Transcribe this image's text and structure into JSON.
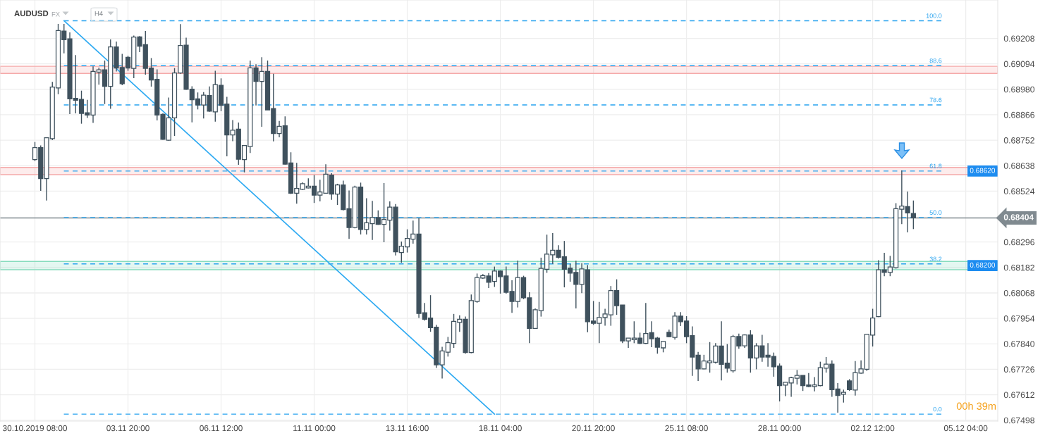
{
  "chart_data": {
    "type": "candlestick",
    "title": "AUDUSD",
    "annotations": [
      "FX",
      "H4",
      "00h 39m",
      {
        "text": "100.0",
        "y": 0.69287
      },
      {
        "text": "88.6",
        "y": 0.69086
      },
      {
        "text": "78.6",
        "y": 0.6891
      },
      {
        "text": "61.8",
        "y": 0.68614
      },
      {
        "text": "50.0",
        "y": 0.68406
      },
      {
        "text": "38.2",
        "y": 0.68198
      },
      {
        "text": "0.0",
        "y": 0.67525
      }
    ],
    "categories": [
      "30.10.2019 08:00",
      null,
      null,
      null,
      null,
      null,
      null,
      null,
      null,
      null,
      null,
      null,
      null,
      null,
      null,
      null,
      "03.11 20:00",
      null,
      null,
      null,
      null,
      null,
      null,
      null,
      null,
      null,
      null,
      null,
      null,
      null,
      null,
      null,
      "06.11 12:00",
      null,
      null,
      null,
      null,
      null,
      null,
      null,
      null,
      null,
      null,
      null,
      null,
      null,
      null,
      null,
      "11.11 00:00",
      null,
      null,
      null,
      null,
      null,
      null,
      null,
      null,
      null,
      null,
      null,
      null,
      null,
      null,
      null,
      "13.11 16:00",
      null,
      null,
      null,
      null,
      null,
      null,
      null,
      null,
      null,
      null,
      null,
      null,
      null,
      null,
      null,
      "18.11 04:00",
      null,
      null,
      null,
      null,
      null,
      null,
      null,
      null,
      null,
      null,
      null,
      null,
      null,
      null,
      null,
      "20.11 20:00",
      null,
      null,
      null,
      null,
      null,
      null,
      null,
      null,
      null,
      null,
      null,
      null,
      null,
      null,
      null,
      "25.11 08:00",
      null,
      null,
      null,
      null,
      null,
      null,
      null,
      null,
      null,
      null,
      null,
      null,
      null,
      null,
      null,
      "28.11 00:00",
      null,
      null,
      null,
      null,
      null,
      null,
      null,
      null,
      null,
      null,
      null,
      null,
      null,
      null,
      null,
      "02.12 12:00",
      null,
      null,
      null,
      null,
      null,
      null,
      null,
      null,
      null,
      null,
      null,
      null,
      null,
      null,
      null,
      "05.12 04:00",
      null,
      null,
      null,
      null,
      null
    ],
    "series": [
      {
        "color": "#3f515d",
        "ohlc": [
          [
            0.68665,
            0.68744,
            0.68659,
            0.68719
          ],
          [
            0.68719,
            0.68729,
            0.68525,
            0.6858
          ],
          [
            0.6858,
            0.68763,
            0.68482,
            0.68763
          ],
          [
            0.68759,
            0.69013,
            0.68752,
            0.6899
          ],
          [
            0.68986,
            0.69273,
            0.68958,
            0.69243
          ],
          [
            0.69241,
            0.69273,
            0.69141,
            0.69202
          ],
          [
            0.69206,
            0.69235,
            0.68869,
            0.68937
          ],
          [
            0.6894,
            0.69133,
            0.68872,
            0.68931
          ],
          [
            0.68935,
            0.68974,
            0.68826,
            0.68872
          ],
          [
            0.68875,
            0.68933,
            0.68852,
            0.68865
          ],
          [
            0.68865,
            0.69083,
            0.6883,
            0.6906
          ],
          [
            0.69057,
            0.69077,
            0.69001,
            0.69067
          ],
          [
            0.69067,
            0.69109,
            0.68914,
            0.68993
          ],
          [
            0.68993,
            0.69203,
            0.68893,
            0.6917
          ],
          [
            0.6917,
            0.69194,
            0.6906,
            0.69075
          ],
          [
            0.69078,
            0.69139,
            0.68998,
            0.69005
          ],
          [
            0.69123,
            0.6913,
            0.69063,
            0.69075
          ],
          [
            0.69074,
            0.69221,
            0.6903,
            0.69214
          ],
          [
            0.69215,
            0.69218,
            0.69147,
            0.69173
          ],
          [
            0.6918,
            0.69241,
            0.69046,
            0.69074
          ],
          [
            0.69075,
            0.6912,
            0.68992,
            0.69022
          ],
          [
            0.69025,
            0.69069,
            0.68841,
            0.68865
          ],
          [
            0.68868,
            0.68872,
            0.68754,
            0.68756
          ],
          [
            0.68752,
            0.68943,
            0.6875,
            0.68852
          ],
          [
            0.68852,
            0.69075,
            0.68771,
            0.69053
          ],
          [
            0.69053,
            0.69272,
            0.6905,
            0.69176
          ],
          [
            0.69178,
            0.69211,
            0.68978,
            0.6898
          ],
          [
            0.68981,
            0.68994,
            0.68832,
            0.68933
          ],
          [
            0.68937,
            0.68966,
            0.6889,
            0.6891
          ],
          [
            0.6891,
            0.68968,
            0.68849,
            0.68954
          ],
          [
            0.68952,
            0.68993,
            0.68879,
            0.68882
          ],
          [
            0.68879,
            0.69063,
            0.68835,
            0.69001
          ],
          [
            0.68998,
            0.69029,
            0.68882,
            0.68908
          ],
          [
            0.68914,
            0.68946,
            0.6868,
            0.68776
          ],
          [
            0.68776,
            0.68842,
            0.68748,
            0.68797
          ],
          [
            0.68802,
            0.68831,
            0.68642,
            0.68667
          ],
          [
            0.68665,
            0.68728,
            0.68608,
            0.68728
          ],
          [
            0.68724,
            0.69109,
            0.68695,
            0.69076
          ],
          [
            0.69076,
            0.69092,
            0.68908,
            0.69015
          ],
          [
            0.69015,
            0.69124,
            0.68812,
            0.6906
          ],
          [
            0.6906,
            0.69109,
            0.68888,
            0.68888
          ],
          [
            0.68894,
            0.6905,
            0.68747,
            0.68782
          ],
          [
            0.68782,
            0.68838,
            0.68765,
            0.68814
          ],
          [
            0.68817,
            0.68859,
            0.68643,
            0.68645
          ],
          [
            0.6865,
            0.68698,
            0.68511,
            0.68515
          ],
          [
            0.68515,
            0.68651,
            0.68468,
            0.68536
          ],
          [
            0.68532,
            0.68563,
            0.68529,
            0.68557
          ],
          [
            0.68538,
            0.68581,
            0.68536,
            0.68546
          ],
          [
            0.68546,
            0.68596,
            0.68471,
            0.68506
          ],
          [
            0.68506,
            0.68575,
            0.68478,
            0.6852
          ],
          [
            0.68515,
            0.68644,
            0.68513,
            0.686
          ],
          [
            0.68596,
            0.68604,
            0.68485,
            0.68511
          ],
          [
            0.68511,
            0.68557,
            0.68462,
            0.68552
          ],
          [
            0.68552,
            0.68571,
            0.68438,
            0.68441
          ],
          [
            0.68445,
            0.68527,
            0.6831,
            0.68361
          ],
          [
            0.68361,
            0.68548,
            0.68357,
            0.68542
          ],
          [
            0.68542,
            0.68562,
            0.6833,
            0.68352
          ],
          [
            0.68352,
            0.68492,
            0.6833,
            0.68382
          ],
          [
            0.68378,
            0.6848,
            0.68305,
            0.68406
          ],
          [
            0.68406,
            0.68438,
            0.68373,
            0.68375
          ],
          [
            0.68375,
            0.6856,
            0.68295,
            0.68397
          ],
          [
            0.68394,
            0.68478,
            0.68347,
            0.68452
          ],
          [
            0.68452,
            0.68466,
            0.68236,
            0.68252
          ],
          [
            0.68249,
            0.68298,
            0.68204,
            0.68277
          ],
          [
            0.68274,
            0.68353,
            0.68249,
            0.68312
          ],
          [
            0.68309,
            0.68392,
            0.68289,
            0.68332
          ],
          [
            0.68332,
            0.68402,
            0.67956,
            0.67976
          ],
          [
            0.67979,
            0.68023,
            0.67944,
            0.6795
          ],
          [
            0.67956,
            0.68058,
            0.67894,
            0.67912
          ],
          [
            0.67915,
            0.67925,
            0.67732,
            0.67746
          ],
          [
            0.67746,
            0.67827,
            0.67685,
            0.67808
          ],
          [
            0.67803,
            0.67871,
            0.67783,
            0.67845
          ],
          [
            0.67842,
            0.67974,
            0.67822,
            0.67941
          ],
          [
            0.67936,
            0.67968,
            0.67894,
            0.6795
          ],
          [
            0.6795,
            0.67962,
            0.67796,
            0.67801
          ],
          [
            0.67801,
            0.68061,
            0.67798,
            0.68034
          ],
          [
            0.6803,
            0.68155,
            0.68024,
            0.68137
          ],
          [
            0.68135,
            0.68152,
            0.68131,
            0.68146
          ],
          [
            0.68144,
            0.68157,
            0.6809,
            0.68116
          ],
          [
            0.6812,
            0.68186,
            0.68095,
            0.68166
          ],
          [
            0.68166,
            0.68169,
            0.68065,
            0.68141
          ],
          [
            0.68144,
            0.68186,
            0.68065,
            0.68071
          ],
          [
            0.68075,
            0.68125,
            0.67979,
            0.6803
          ],
          [
            0.6803,
            0.68213,
            0.68003,
            0.68137
          ],
          [
            0.68137,
            0.68145,
            0.6804,
            0.68046
          ],
          [
            0.68046,
            0.68071,
            0.67843,
            0.67909
          ],
          [
            0.67909,
            0.67999,
            0.67907,
            0.67993
          ],
          [
            0.67989,
            0.68226,
            0.67962,
            0.68178
          ],
          [
            0.68174,
            0.68329,
            0.68158,
            0.68242
          ],
          [
            0.68239,
            0.68336,
            0.68198,
            0.68259
          ],
          [
            0.68259,
            0.68282,
            0.68222,
            0.68228
          ],
          [
            0.6823,
            0.68301,
            0.68093,
            0.68174
          ],
          [
            0.68179,
            0.68198,
            0.68118,
            0.68157
          ],
          [
            0.6816,
            0.68212,
            0.67999,
            0.68106
          ],
          [
            0.68106,
            0.68201,
            0.68067,
            0.68176
          ],
          [
            0.68172,
            0.68193,
            0.67892,
            0.67939
          ],
          [
            0.67942,
            0.68032,
            0.67925,
            0.67932
          ],
          [
            0.67932,
            0.68028,
            0.67843,
            0.67958
          ],
          [
            0.67958,
            0.67997,
            0.67921,
            0.67974
          ],
          [
            0.6797,
            0.68099,
            0.67921,
            0.68079
          ],
          [
            0.68079,
            0.68129,
            0.6797,
            0.68011
          ],
          [
            0.68014,
            0.68014,
            0.67843,
            0.67853
          ],
          [
            0.67853,
            0.67866,
            0.67822,
            0.67866
          ],
          [
            0.67859,
            0.67941,
            0.67843,
            0.67866
          ],
          [
            0.67866,
            0.6789,
            0.67839,
            0.67842
          ],
          [
            0.67842,
            0.68023,
            0.67839,
            0.67886
          ],
          [
            0.6789,
            0.67941,
            0.67825,
            0.67863
          ],
          [
            0.67866,
            0.67871,
            0.67796,
            0.67825
          ],
          [
            0.67822,
            0.67851,
            0.67802,
            0.67851
          ],
          [
            0.67892,
            0.67904,
            0.67869,
            0.67872
          ],
          [
            0.67869,
            0.67982,
            0.67859,
            0.67964
          ],
          [
            0.67964,
            0.67982,
            0.6792,
            0.67939
          ],
          [
            0.67942,
            0.67964,
            0.67843,
            0.67872
          ],
          [
            0.67877,
            0.67918,
            0.67697,
            0.67781
          ],
          [
            0.67789,
            0.67804,
            0.67674,
            0.67728
          ],
          [
            0.67728,
            0.67791,
            0.67726,
            0.67763
          ],
          [
            0.67755,
            0.67848,
            0.67711,
            0.67763
          ],
          [
            0.67758,
            0.67843,
            0.67752,
            0.6783
          ],
          [
            0.6783,
            0.67941,
            0.67676,
            0.67748
          ],
          [
            0.67754,
            0.67839,
            0.67711,
            0.67731
          ],
          [
            0.67719,
            0.6788,
            0.67711,
            0.67873
          ],
          [
            0.67873,
            0.67886,
            0.67818,
            0.6783
          ],
          [
            0.67831,
            0.67883,
            0.67822,
            0.6788
          ],
          [
            0.6788,
            0.67901,
            0.67711,
            0.67777
          ],
          [
            0.67777,
            0.67843,
            0.67726,
            0.67831
          ],
          [
            0.67831,
            0.6788,
            0.6776,
            0.67781
          ],
          [
            0.67789,
            0.67843,
            0.67738,
            0.67781
          ],
          [
            0.67784,
            0.67801,
            0.67693,
            0.67737
          ],
          [
            0.6774,
            0.67752,
            0.67582,
            0.67653
          ],
          [
            0.67655,
            0.67668,
            0.67606,
            0.67668
          ],
          [
            0.67665,
            0.67693,
            0.67603,
            0.67688
          ],
          [
            0.67686,
            0.67723,
            0.67658,
            0.67699
          ],
          [
            0.67699,
            0.67699,
            0.67629,
            0.67653
          ],
          [
            0.67656,
            0.67709,
            0.67646,
            0.67649
          ],
          [
            0.67649,
            0.67691,
            0.67627,
            0.67656
          ],
          [
            0.67653,
            0.6776,
            0.6765,
            0.67733
          ],
          [
            0.67731,
            0.67781,
            0.67711,
            0.67749
          ],
          [
            0.67749,
            0.67766,
            0.67603,
            0.67635
          ],
          [
            0.67638,
            0.67664,
            0.67532,
            0.67609
          ],
          [
            0.67614,
            0.67635,
            0.67577,
            0.67623
          ],
          [
            0.67674,
            0.67682,
            0.67629,
            0.67635
          ],
          [
            0.67633,
            0.67763,
            0.67608,
            0.67711
          ],
          [
            0.67709,
            0.67766,
            0.67706,
            0.67728
          ],
          [
            0.67726,
            0.67883,
            0.67719,
            0.67883
          ],
          [
            0.67879,
            0.67997,
            0.67828,
            0.67956
          ],
          [
            0.67962,
            0.68215,
            0.6796,
            0.68172
          ],
          [
            0.68172,
            0.68248,
            0.68143,
            0.6816
          ],
          [
            0.6816,
            0.68234,
            0.68143,
            0.68184
          ],
          [
            0.68181,
            0.6847,
            0.68177,
            0.68445
          ],
          [
            0.68443,
            0.68617,
            0.68376,
            0.68457
          ],
          [
            0.68455,
            0.68522,
            0.68339,
            0.68426
          ],
          [
            0.68424,
            0.68482,
            0.68354,
            0.68404
          ],
          null,
          null,
          null,
          null,
          null,
          null,
          null,
          null,
          null,
          null,
          null,
          null,
          null,
          null
        ]
      },
      {
        "type": "line",
        "color": "#2eaaf2",
        "values": [
          null,
          null,
          null,
          null,
          null,
          0.69287,
          null,
          null,
          null,
          null,
          null,
          null,
          null,
          null,
          null,
          null,
          null,
          null,
          null,
          null,
          null,
          null,
          null,
          null,
          null,
          null,
          null,
          null,
          null,
          null,
          null,
          null,
          null,
          null,
          null,
          null,
          null,
          null,
          null,
          null,
          null,
          null,
          null,
          null,
          null,
          null,
          null,
          null,
          null,
          null,
          null,
          null,
          null,
          null,
          null,
          null,
          null,
          null,
          null,
          null,
          null,
          null,
          null,
          null,
          null,
          null,
          null,
          null,
          null,
          null,
          null,
          null,
          null,
          null,
          null,
          null,
          null,
          null,
          null,
          0.67525,
          null,
          null,
          null,
          null,
          null,
          null,
          null,
          null,
          null,
          null,
          null,
          null,
          null,
          null,
          null,
          null,
          null,
          null,
          null,
          null,
          null,
          null,
          null,
          null,
          null,
          null,
          null,
          null,
          null,
          null,
          null,
          null,
          null,
          null,
          null,
          null,
          null,
          null,
          null,
          null,
          null,
          null,
          null,
          null,
          null,
          null,
          null,
          null,
          null,
          null,
          null,
          null,
          null,
          null,
          null,
          null,
          null,
          null,
          null,
          null,
          null,
          null,
          null,
          null,
          null,
          null,
          null,
          null,
          null,
          null,
          null,
          null,
          null,
          null,
          null,
          null,
          null,
          null,
          null,
          null,
          null,
          null,
          null,
          null,
          null,
          null
        ]
      }
    ],
    "ylim": [
      0.67494,
      0.6938
    ],
    "yticks": [
      0.67498,
      0.67612,
      0.67726,
      {
        "value": 0.6784,
        "label": "0.67840"
      },
      0.67954,
      0.68068,
      0.68182,
      0.68296,
      0.68524,
      0.68638,
      0.68752,
      0.68866,
      {
        "value": 0.6898,
        "label": "0.68980"
      },
      0.69094,
      0.69208
    ],
    "grid": true,
    "bands": [
      {
        "axis": "y",
        "from": 0.69051,
        "to": 0.69083,
        "color": "#f5a9a9"
      },
      {
        "axis": "y",
        "from": 0.68598,
        "to": 0.6863,
        "label": "0.68620",
        "color": "#f5a9a9"
      },
      {
        "axis": "y",
        "from": 0.68172,
        "to": 0.68209,
        "label": "0.68200",
        "color": "#86dcbd"
      }
    ],
    "ref_lines": [
      {
        "axis": "y",
        "value": 0.68404,
        "label": "0.68404",
        "color": "#808a90",
        "line_style": "solid"
      },
      {
        "axis": "y",
        "value": 0.69287,
        "color": "#29a3ef",
        "line_style": "dashed"
      },
      {
        "axis": "y",
        "value": 0.69086,
        "color": "#29a3ef",
        "line_style": "dashed"
      },
      {
        "axis": "y",
        "value": 0.6891,
        "color": "#29a3ef",
        "line_style": "dashed"
      },
      {
        "axis": "y",
        "value": 0.68614,
        "color": "#29a3ef",
        "line_style": "dashed"
      },
      {
        "axis": "y",
        "value": 0.68406,
        "color": "#29a3ef",
        "line_style": "dashed"
      },
      {
        "axis": "y",
        "value": 0.68198,
        "color": "#29a3ef",
        "line_style": "dashed"
      },
      {
        "axis": "y",
        "value": 0.67525,
        "color": "#29a3ef",
        "line_style": "dashed"
      }
    ]
  }
}
